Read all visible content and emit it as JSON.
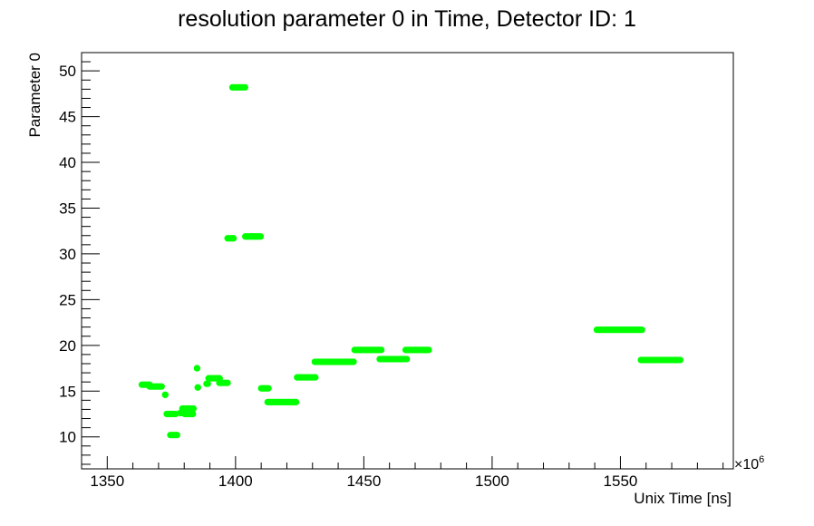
{
  "chart_data": {
    "type": "scatter",
    "title": "resolution parameter 0 in Time, Detector ID: 1",
    "xlabel": "Unix Time [ns]",
    "ylabel": "Parameter 0",
    "x_multiplier_label": "×10",
    "x_multiplier_exp": "6",
    "xlim": [
      1340,
      1594
    ],
    "ylim": [
      6.5,
      52
    ],
    "x_ticks": [
      1350,
      1400,
      1450,
      1500,
      1550
    ],
    "y_ticks": [
      10,
      15,
      20,
      25,
      30,
      35,
      40,
      45,
      50
    ],
    "grid": false,
    "marker_color": "#00ff00",
    "segments": [
      {
        "x0": 1363.5,
        "x1": 1366.5,
        "y": 15.7
      },
      {
        "x0": 1366.5,
        "x1": 1371.2,
        "y": 15.5
      },
      {
        "x0": 1372.6,
        "x1": 1372.6,
        "y": 14.6
      },
      {
        "x0": 1373.2,
        "x1": 1376.6,
        "y": 12.5
      },
      {
        "x0": 1374.6,
        "x1": 1377.2,
        "y": 10.2
      },
      {
        "x0": 1378.4,
        "x1": 1379.8,
        "y": 12.6
      },
      {
        "x0": 1379.3,
        "x1": 1383.6,
        "y": 13.1
      },
      {
        "x0": 1380.2,
        "x1": 1383.4,
        "y": 12.5
      },
      {
        "x0": 1385.0,
        "x1": 1385.0,
        "y": 17.5
      },
      {
        "x0": 1385.3,
        "x1": 1385.3,
        "y": 15.4
      },
      {
        "x0": 1388.7,
        "x1": 1389.2,
        "y": 15.8
      },
      {
        "x0": 1389.5,
        "x1": 1393.8,
        "y": 16.4
      },
      {
        "x0": 1393.7,
        "x1": 1396.9,
        "y": 15.9
      },
      {
        "x0": 1396.9,
        "x1": 1399.2,
        "y": 31.7
      },
      {
        "x0": 1398.8,
        "x1": 1403.7,
        "y": 48.2
      },
      {
        "x0": 1403.8,
        "x1": 1409.8,
        "y": 31.9
      },
      {
        "x0": 1410.0,
        "x1": 1412.8,
        "y": 15.3
      },
      {
        "x0": 1412.5,
        "x1": 1423.6,
        "y": 13.8
      },
      {
        "x0": 1424.0,
        "x1": 1431.1,
        "y": 16.5
      },
      {
        "x0": 1430.9,
        "x1": 1446.0,
        "y": 18.2
      },
      {
        "x0": 1446.4,
        "x1": 1456.8,
        "y": 19.5
      },
      {
        "x0": 1456.2,
        "x1": 1466.7,
        "y": 18.5
      },
      {
        "x0": 1466.3,
        "x1": 1475.3,
        "y": 19.5
      },
      {
        "x0": 1540.8,
        "x1": 1558.4,
        "y": 21.7
      },
      {
        "x0": 1558.0,
        "x1": 1573.3,
        "y": 18.4
      }
    ]
  }
}
